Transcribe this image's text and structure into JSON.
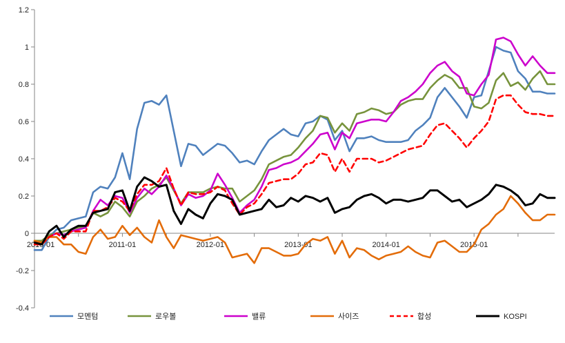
{
  "chart_data": {
    "type": "line",
    "title": "",
    "xlabel": "",
    "ylabel": "",
    "ylim": [
      -0.4,
      1.2
    ],
    "yticks": [
      -0.4,
      -0.2,
      0,
      0.2,
      0.4,
      0.6,
      0.8,
      1,
      1.2
    ],
    "ytick_labels": [
      "-0.4",
      "-0.2",
      "0",
      "0.2",
      "0.4",
      "0.6",
      "0.8",
      "1",
      "1.2"
    ],
    "grid": false,
    "legend_position": "bottom",
    "x": [
      "2010-01",
      "2010-02",
      "2010-03",
      "2010-04",
      "2010-05",
      "2010-06",
      "2010-07",
      "2010-08",
      "2010-09",
      "2010-10",
      "2010-11",
      "2010-12",
      "2011-01",
      "2011-02",
      "2011-03",
      "2011-04",
      "2011-05",
      "2011-06",
      "2011-07",
      "2011-08",
      "2011-09",
      "2011-10",
      "2011-11",
      "2011-12",
      "2012-01",
      "2012-02",
      "2012-03",
      "2012-04",
      "2012-05",
      "2012-06",
      "2012-07",
      "2012-08",
      "2012-09",
      "2012-10",
      "2012-11",
      "2012-12",
      "2013-01",
      "2013-02",
      "2013-03",
      "2013-04",
      "2013-05",
      "2013-06",
      "2013-07",
      "2013-08",
      "2013-09",
      "2013-10",
      "2013-11",
      "2013-12",
      "2014-01",
      "2014-02",
      "2014-03",
      "2014-04",
      "2014-05",
      "2014-06",
      "2014-07",
      "2014-08",
      "2014-09",
      "2014-10",
      "2014-11",
      "2014-12",
      "2015-01",
      "2015-02",
      "2015-03",
      "2015-04",
      "2015-05",
      "2015-06",
      "2015-07",
      "2015-08",
      "2015-09",
      "2015-10",
      "2015-11",
      "2015-12"
    ],
    "xtick_labels": [
      {
        "at": "2010-01",
        "label": "2010-01"
      },
      {
        "at": "2011-01",
        "label": "2011-01"
      },
      {
        "at": "2012-01",
        "label": "2012-01"
      },
      {
        "at": "2013-01",
        "label": "2013-01"
      },
      {
        "at": "2014-01",
        "label": "2014-01"
      },
      {
        "at": "2015-01",
        "label": "2015-01"
      }
    ],
    "series": [
      {
        "name": "모멘텀",
        "color": "#4F81BD",
        "dash": false,
        "values": [
          -0.09,
          -0.09,
          -0.02,
          0.02,
          0.03,
          0.07,
          0.08,
          0.09,
          0.22,
          0.25,
          0.24,
          0.3,
          0.43,
          0.29,
          0.56,
          0.7,
          0.71,
          0.69,
          0.74,
          0.55,
          0.36,
          0.48,
          0.47,
          0.42,
          0.45,
          0.48,
          0.47,
          0.43,
          0.38,
          0.39,
          0.37,
          0.44,
          0.5,
          0.53,
          0.56,
          0.53,
          0.52,
          0.59,
          0.6,
          0.63,
          0.61,
          0.5,
          0.55,
          0.44,
          0.51,
          0.51,
          0.52,
          0.5,
          0.49,
          0.49,
          0.49,
          0.5,
          0.55,
          0.58,
          0.62,
          0.73,
          0.78,
          0.73,
          0.68,
          0.62,
          0.73,
          0.74,
          0.87,
          1.0,
          0.98,
          0.97,
          0.87,
          0.83,
          0.76,
          0.76,
          0.75,
          0.75
        ]
      },
      {
        "name": "로우볼",
        "color": "#77933C",
        "dash": false,
        "values": [
          -0.04,
          -0.04,
          -0.01,
          0.0,
          0.01,
          0.02,
          0.03,
          0.04,
          0.11,
          0.09,
          0.11,
          0.17,
          0.14,
          0.09,
          0.17,
          0.2,
          0.24,
          0.26,
          0.3,
          0.23,
          0.16,
          0.22,
          0.22,
          0.22,
          0.24,
          0.25,
          0.24,
          0.24,
          0.17,
          0.2,
          0.23,
          0.29,
          0.37,
          0.39,
          0.41,
          0.42,
          0.46,
          0.51,
          0.55,
          0.63,
          0.62,
          0.54,
          0.59,
          0.55,
          0.64,
          0.65,
          0.67,
          0.66,
          0.64,
          0.65,
          0.69,
          0.71,
          0.72,
          0.72,
          0.78,
          0.82,
          0.85,
          0.83,
          0.78,
          0.78,
          0.68,
          0.67,
          0.7,
          0.82,
          0.86,
          0.79,
          0.81,
          0.77,
          0.83,
          0.87,
          0.8,
          0.8
        ]
      },
      {
        "name": "밸류",
        "color": "#CC00CC",
        "dash": false,
        "values": [
          -0.05,
          -0.05,
          -0.02,
          0.0,
          -0.01,
          0.01,
          0.02,
          0.03,
          0.12,
          0.18,
          0.15,
          0.2,
          0.19,
          0.11,
          0.19,
          0.24,
          0.21,
          0.25,
          0.31,
          0.24,
          0.15,
          0.21,
          0.19,
          0.2,
          0.23,
          0.32,
          0.26,
          0.19,
          0.11,
          0.15,
          0.18,
          0.25,
          0.34,
          0.35,
          0.37,
          0.38,
          0.4,
          0.44,
          0.48,
          0.53,
          0.54,
          0.45,
          0.54,
          0.51,
          0.59,
          0.6,
          0.61,
          0.61,
          0.6,
          0.65,
          0.71,
          0.73,
          0.76,
          0.8,
          0.86,
          0.9,
          0.92,
          0.87,
          0.84,
          0.75,
          0.74,
          0.8,
          0.85,
          1.04,
          1.05,
          1.03,
          0.96,
          0.9,
          0.95,
          0.9,
          0.86,
          0.86
        ]
      },
      {
        "name": "사이즈",
        "color": "#E36C09",
        "dash": false,
        "values": [
          -0.04,
          -0.05,
          -0.02,
          -0.02,
          -0.06,
          -0.06,
          -0.1,
          -0.11,
          -0.02,
          0.02,
          -0.03,
          -0.02,
          0.04,
          -0.01,
          0.03,
          -0.02,
          -0.05,
          0.07,
          -0.02,
          -0.08,
          -0.01,
          -0.02,
          -0.03,
          -0.04,
          -0.03,
          -0.02,
          -0.05,
          -0.13,
          -0.12,
          -0.11,
          -0.16,
          -0.08,
          -0.08,
          -0.1,
          -0.12,
          -0.12,
          -0.11,
          -0.06,
          -0.03,
          -0.04,
          -0.02,
          -0.11,
          -0.04,
          -0.13,
          -0.08,
          -0.09,
          -0.12,
          -0.14,
          -0.12,
          -0.11,
          -0.1,
          -0.07,
          -0.1,
          -0.12,
          -0.13,
          -0.05,
          -0.04,
          -0.07,
          -0.1,
          -0.1,
          -0.06,
          0.02,
          0.05,
          0.1,
          0.13,
          0.2,
          0.16,
          0.11,
          0.07,
          0.07,
          0.1,
          0.1
        ]
      },
      {
        "name": "합성",
        "color": "#FF0000",
        "dash": true,
        "values": [
          -0.06,
          -0.06,
          -0.02,
          0.0,
          -0.03,
          0.01,
          0.01,
          0.01,
          0.12,
          0.12,
          0.14,
          0.19,
          0.17,
          0.12,
          0.21,
          0.26,
          0.26,
          0.28,
          0.35,
          0.24,
          0.15,
          0.22,
          0.21,
          0.21,
          0.22,
          0.25,
          0.23,
          0.16,
          0.1,
          0.14,
          0.16,
          0.21,
          0.27,
          0.28,
          0.29,
          0.29,
          0.32,
          0.37,
          0.38,
          0.43,
          0.42,
          0.33,
          0.4,
          0.33,
          0.4,
          0.4,
          0.4,
          0.38,
          0.39,
          0.41,
          0.43,
          0.45,
          0.46,
          0.47,
          0.53,
          0.58,
          0.59,
          0.55,
          0.51,
          0.46,
          0.51,
          0.55,
          0.6,
          0.72,
          0.74,
          0.74,
          0.69,
          0.65,
          0.64,
          0.64,
          0.63,
          0.63
        ]
      },
      {
        "name": "KOSPI",
        "color": "#000000",
        "dash": false,
        "values": [
          -0.05,
          -0.06,
          0.01,
          0.04,
          -0.02,
          0.02,
          0.04,
          0.04,
          0.11,
          0.12,
          0.13,
          0.22,
          0.23,
          0.12,
          0.25,
          0.3,
          0.28,
          0.25,
          0.26,
          0.12,
          0.05,
          0.13,
          0.1,
          0.08,
          0.16,
          0.21,
          0.2,
          0.18,
          0.1,
          0.11,
          0.12,
          0.13,
          0.18,
          0.14,
          0.15,
          0.19,
          0.17,
          0.2,
          0.19,
          0.17,
          0.19,
          0.11,
          0.13,
          0.14,
          0.18,
          0.2,
          0.21,
          0.19,
          0.16,
          0.18,
          0.18,
          0.17,
          0.18,
          0.19,
          0.23,
          0.23,
          0.2,
          0.17,
          0.18,
          0.14,
          0.16,
          0.18,
          0.21,
          0.26,
          0.25,
          0.23,
          0.2,
          0.15,
          0.16,
          0.21,
          0.19,
          0.19
        ]
      }
    ]
  }
}
